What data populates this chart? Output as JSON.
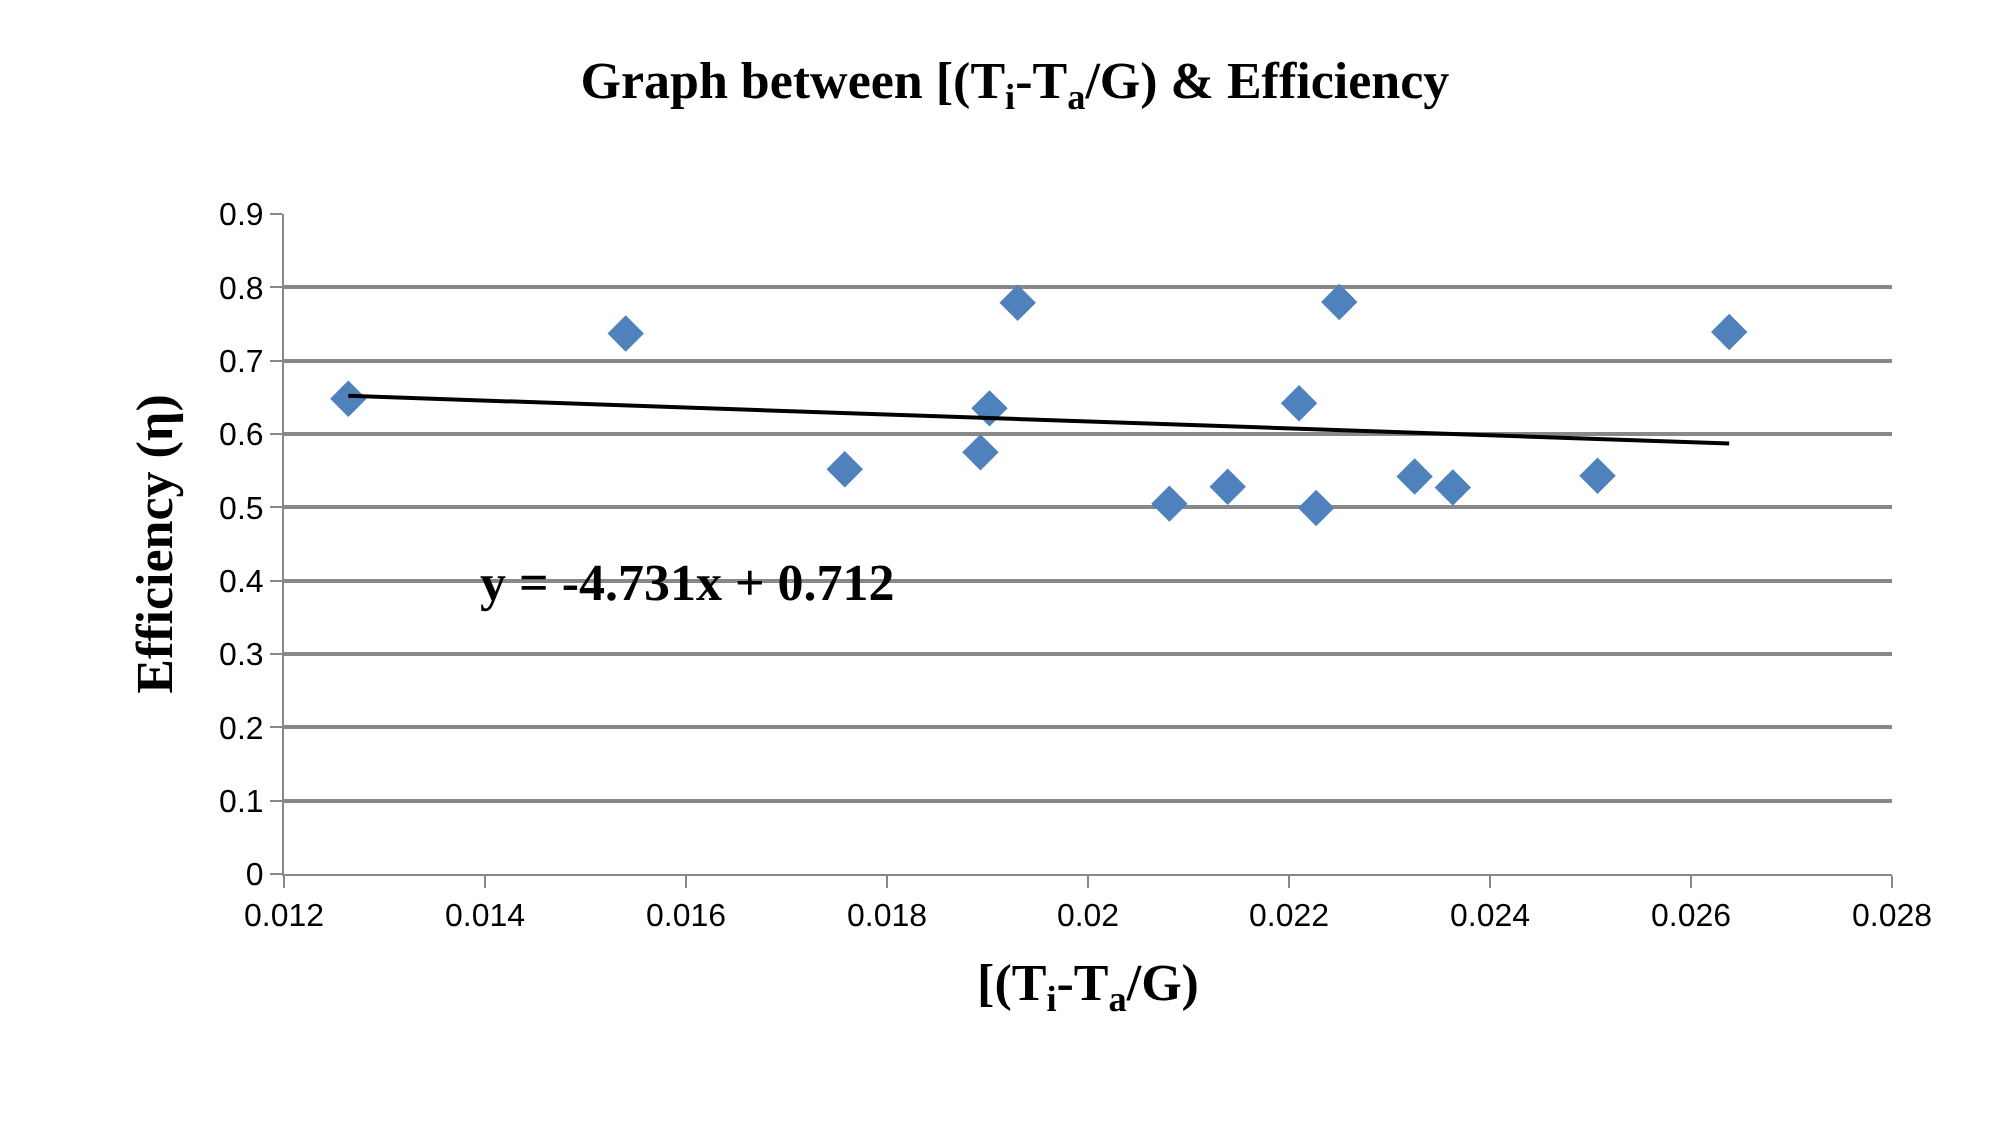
{
  "chart_data": {
    "type": "scatter",
    "title": "Graph between [(T$_{i}$-T$_{a}$/G) & Efficiency",
    "xlabel": "[(T$_{i}$-T$_{a}$/G)",
    "ylabel": "Efficiency (η)",
    "xlim": [
      0.012,
      0.028
    ],
    "xticks": [
      0.012,
      0.014,
      0.016,
      0.018,
      0.02,
      0.022,
      0.024,
      0.026,
      0.028
    ],
    "ylim": [
      0,
      0.9
    ],
    "yticks": [
      0,
      0.1,
      0.2,
      0.3,
      0.4,
      0.5,
      0.6,
      0.7,
      0.8,
      0.9
    ],
    "grid": "y",
    "marker": "diamond",
    "series": [
      {
        "color": "#4f81bd",
        "x": [
          0.01264,
          0.0154,
          0.01758,
          0.01893,
          0.01902,
          0.0193,
          0.02081,
          0.02139,
          0.02227,
          0.0221,
          0.0225,
          0.02325,
          0.02363,
          0.02507,
          0.02638
        ],
        "values": [
          0.648,
          0.737,
          0.552,
          0.575,
          0.635,
          0.779,
          0.505,
          0.528,
          0.499,
          0.642,
          0.78,
          0.542,
          0.527,
          0.543,
          0.739
        ]
      },
      {
        "type": "line",
        "color": "#000000",
        "marker": "none",
        "line_style": "solid",
        "x": [
          0.01264,
          0.02638
        ],
        "values": [
          0.652,
          0.587
        ]
      }
    ],
    "annotations": [
      "y = -4.731x + 0.712"
    ]
  }
}
